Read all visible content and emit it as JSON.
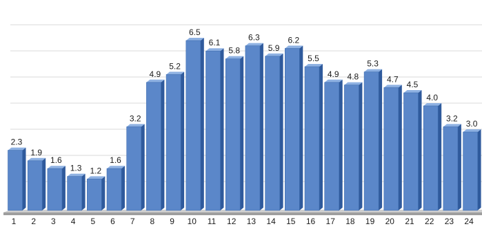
{
  "chart_data": {
    "type": "bar",
    "categories": [
      "1",
      "2",
      "3",
      "4",
      "5",
      "6",
      "7",
      "8",
      "9",
      "10",
      "11",
      "12",
      "13",
      "14",
      "15",
      "16",
      "17",
      "18",
      "19",
      "20",
      "21",
      "22",
      "23",
      "24"
    ],
    "values": [
      2.3,
      1.9,
      1.6,
      1.3,
      1.2,
      1.6,
      3.2,
      4.9,
      5.2,
      6.5,
      6.1,
      5.8,
      6.3,
      5.9,
      6.2,
      5.5,
      4.9,
      4.8,
      5.3,
      4.7,
      4.5,
      4.0,
      3.2,
      3.0
    ],
    "data_labels": [
      "2.3",
      "1.9",
      "1.6",
      "1.3",
      "1.2",
      "1.6",
      "3.2",
      "4.9",
      "5.2",
      "6.5",
      "6.1",
      "5.8",
      "6.3",
      "5.9",
      "6.2",
      "5.5",
      "4.9",
      "4.8",
      "5.3",
      "4.7",
      "4.5",
      "4.0",
      "3.2",
      "3.0"
    ],
    "title": "",
    "xlabel": "",
    "ylabel": "",
    "ylim": [
      0,
      7
    ],
    "gridlines": true,
    "legend": "none",
    "style": "3d-column",
    "colors": {
      "bar_front": "#5b87c9",
      "bar_side": "#2f5a9c",
      "bar_top": "#8eb1e2",
      "gridline": "#d9d9d9",
      "floor": "#9e9e9e",
      "label_text": "#1a1a1a"
    }
  }
}
